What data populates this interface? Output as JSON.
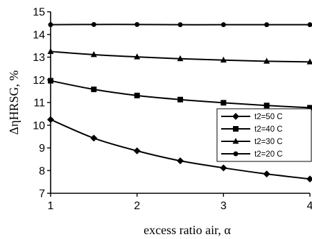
{
  "chart_data": {
    "type": "line",
    "title": "",
    "xlabel": "excess ratio air, α",
    "ylabel": "ΔηHRSG, %",
    "xlim": [
      1,
      4
    ],
    "ylim": [
      7,
      15
    ],
    "x_ticks": [
      1,
      2,
      3,
      4
    ],
    "y_ticks": [
      7,
      8,
      9,
      10,
      11,
      12,
      13,
      14,
      15
    ],
    "x_tick_labels": [
      "1",
      "2",
      "3",
      "4"
    ],
    "y_tick_labels": [
      "7",
      "8",
      "9",
      "10",
      "11",
      "12",
      "13",
      "14",
      "15"
    ],
    "grid": false,
    "legend_position": "right",
    "x": [
      1,
      1.5,
      2,
      2.5,
      3,
      3.5,
      4
    ],
    "series": [
      {
        "name": "t2=50 C",
        "marker": "diamond",
        "values": [
          10.25,
          9.43,
          8.87,
          8.43,
          8.12,
          7.85,
          7.63
        ]
      },
      {
        "name": "t2=40 C",
        "marker": "square",
        "values": [
          11.96,
          11.58,
          11.31,
          11.13,
          10.99,
          10.87,
          10.77
        ]
      },
      {
        "name": "t2=30 C",
        "marker": "triangle",
        "values": [
          13.25,
          13.11,
          13.01,
          12.93,
          12.87,
          12.82,
          12.79
        ]
      },
      {
        "name": "t2=20 C",
        "marker": "circle",
        "values": [
          14.43,
          14.44,
          14.44,
          14.43,
          14.43,
          14.43,
          14.43
        ]
      }
    ],
    "color": "#000000"
  }
}
